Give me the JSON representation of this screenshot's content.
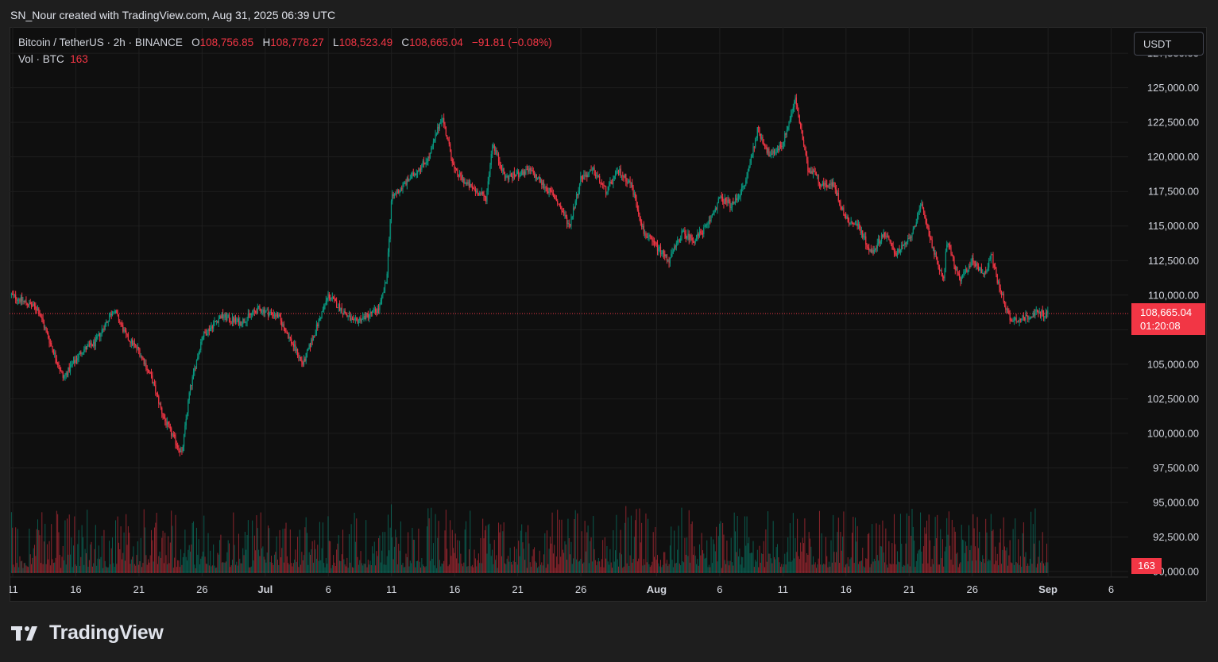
{
  "header": {
    "credit": "SN_Nour created with TradingView.com, Aug 31, 2025 06:39 UTC"
  },
  "legend": {
    "symbol": "Bitcoin / TetherUS · 2h · BINANCE",
    "open_label": "O",
    "open": "108,756.85",
    "high_label": "H",
    "high": "108,778.27",
    "low_label": "L",
    "low": "108,523.49",
    "close_label": "C",
    "close": "108,665.04",
    "change": "−91.81 (−0.08%)",
    "volume_label": "Vol · BTC",
    "volume": "163"
  },
  "currency": "USDT",
  "last_price": {
    "price": "108,665.04",
    "countdown": "01:20:08"
  },
  "volume_tag": "163",
  "brand": {
    "name": "TradingView",
    "logo_icon": "tradingview-logo-icon"
  },
  "colors": {
    "up": "#089981",
    "down": "#f23645",
    "background": "#0f0f0f",
    "grid": "#1f1f1f",
    "text": "#d1d4dc"
  },
  "chart_data": {
    "type": "candlestick",
    "symbol": "BTCUSDT",
    "timeframe": "2h",
    "y_axis": {
      "tick_labels": [
        "90,000.00",
        "92,500.00",
        "95,000.00",
        "97,500.00",
        "100,000.00",
        "102,500.00",
        "105,000.00",
        "107,500.00",
        "110,000.00",
        "112,500.00",
        "115,000.00",
        "117,500.00",
        "120,000.00",
        "122,500.00",
        "125,000.00",
        "127,500.00"
      ],
      "ticks": [
        90000,
        92500,
        95000,
        97500,
        100000,
        102500,
        105000,
        107500,
        110000,
        112500,
        115000,
        117500,
        120000,
        122500,
        125000,
        127500
      ],
      "range": [
        89600,
        129400
      ]
    },
    "x_axis": {
      "tick_labels": [
        "11",
        "16",
        "21",
        "26",
        "Jul",
        "6",
        "11",
        "16",
        "21",
        "26",
        "Aug",
        "6",
        "11",
        "16",
        "21",
        "26",
        "Sep",
        "6"
      ],
      "ticks": [
        11,
        16,
        21,
        26,
        31,
        36,
        41,
        46,
        51,
        56,
        62,
        67,
        72,
        77,
        82,
        87,
        93,
        98
      ],
      "range": [
        10.75,
        99.35
      ],
      "bold_labels": [
        "Jul",
        "Aug",
        "Sep"
      ]
    },
    "series": [
      {
        "name": "Price",
        "x": [
          10.9,
          13,
          15,
          16.5,
          17.5,
          19,
          20,
          21,
          22,
          23,
          24.4,
          25,
          26,
          27.5,
          29,
          30.5,
          32,
          34,
          36,
          38,
          40,
          40.6,
          41,
          42,
          44,
          45,
          46,
          47,
          48.5,
          49,
          50,
          52,
          54,
          55.1,
          56,
          57,
          58,
          59,
          60,
          61,
          62,
          63,
          64,
          65,
          66,
          67,
          68,
          69,
          70,
          71,
          72,
          73,
          74,
          74.5,
          75,
          76,
          77,
          78,
          79,
          80,
          81,
          82,
          83,
          84,
          84.7,
          85,
          86,
          87,
          88,
          88.5,
          89,
          90,
          91,
          92,
          93
        ],
        "y": [
          110000,
          109000,
          104000,
          106000,
          106500,
          109000,
          107000,
          106000,
          104000,
          101000,
          98500,
          103000,
          107000,
          108500,
          108000,
          109000,
          108500,
          105000,
          110000,
          108000,
          109000,
          111000,
          117000,
          118000,
          120000,
          123000,
          119000,
          118000,
          117000,
          121000,
          118500,
          119000,
          117000,
          115000,
          118500,
          119000,
          117500,
          119000,
          118000,
          114500,
          113500,
          112500,
          114500,
          114000,
          115000,
          117000,
          116500,
          118000,
          122000,
          120000,
          121000,
          124200,
          119000,
          119000,
          118000,
          118000,
          115500,
          115000,
          113000,
          114500,
          113000,
          114000,
          116500,
          113000,
          111000,
          114000,
          111000,
          112500,
          111500,
          113000,
          111000,
          108200,
          108300,
          108700,
          108665
        ]
      }
    ],
    "volume_note": "Volume bars along the bottom pane, colored by candle direction"
  }
}
